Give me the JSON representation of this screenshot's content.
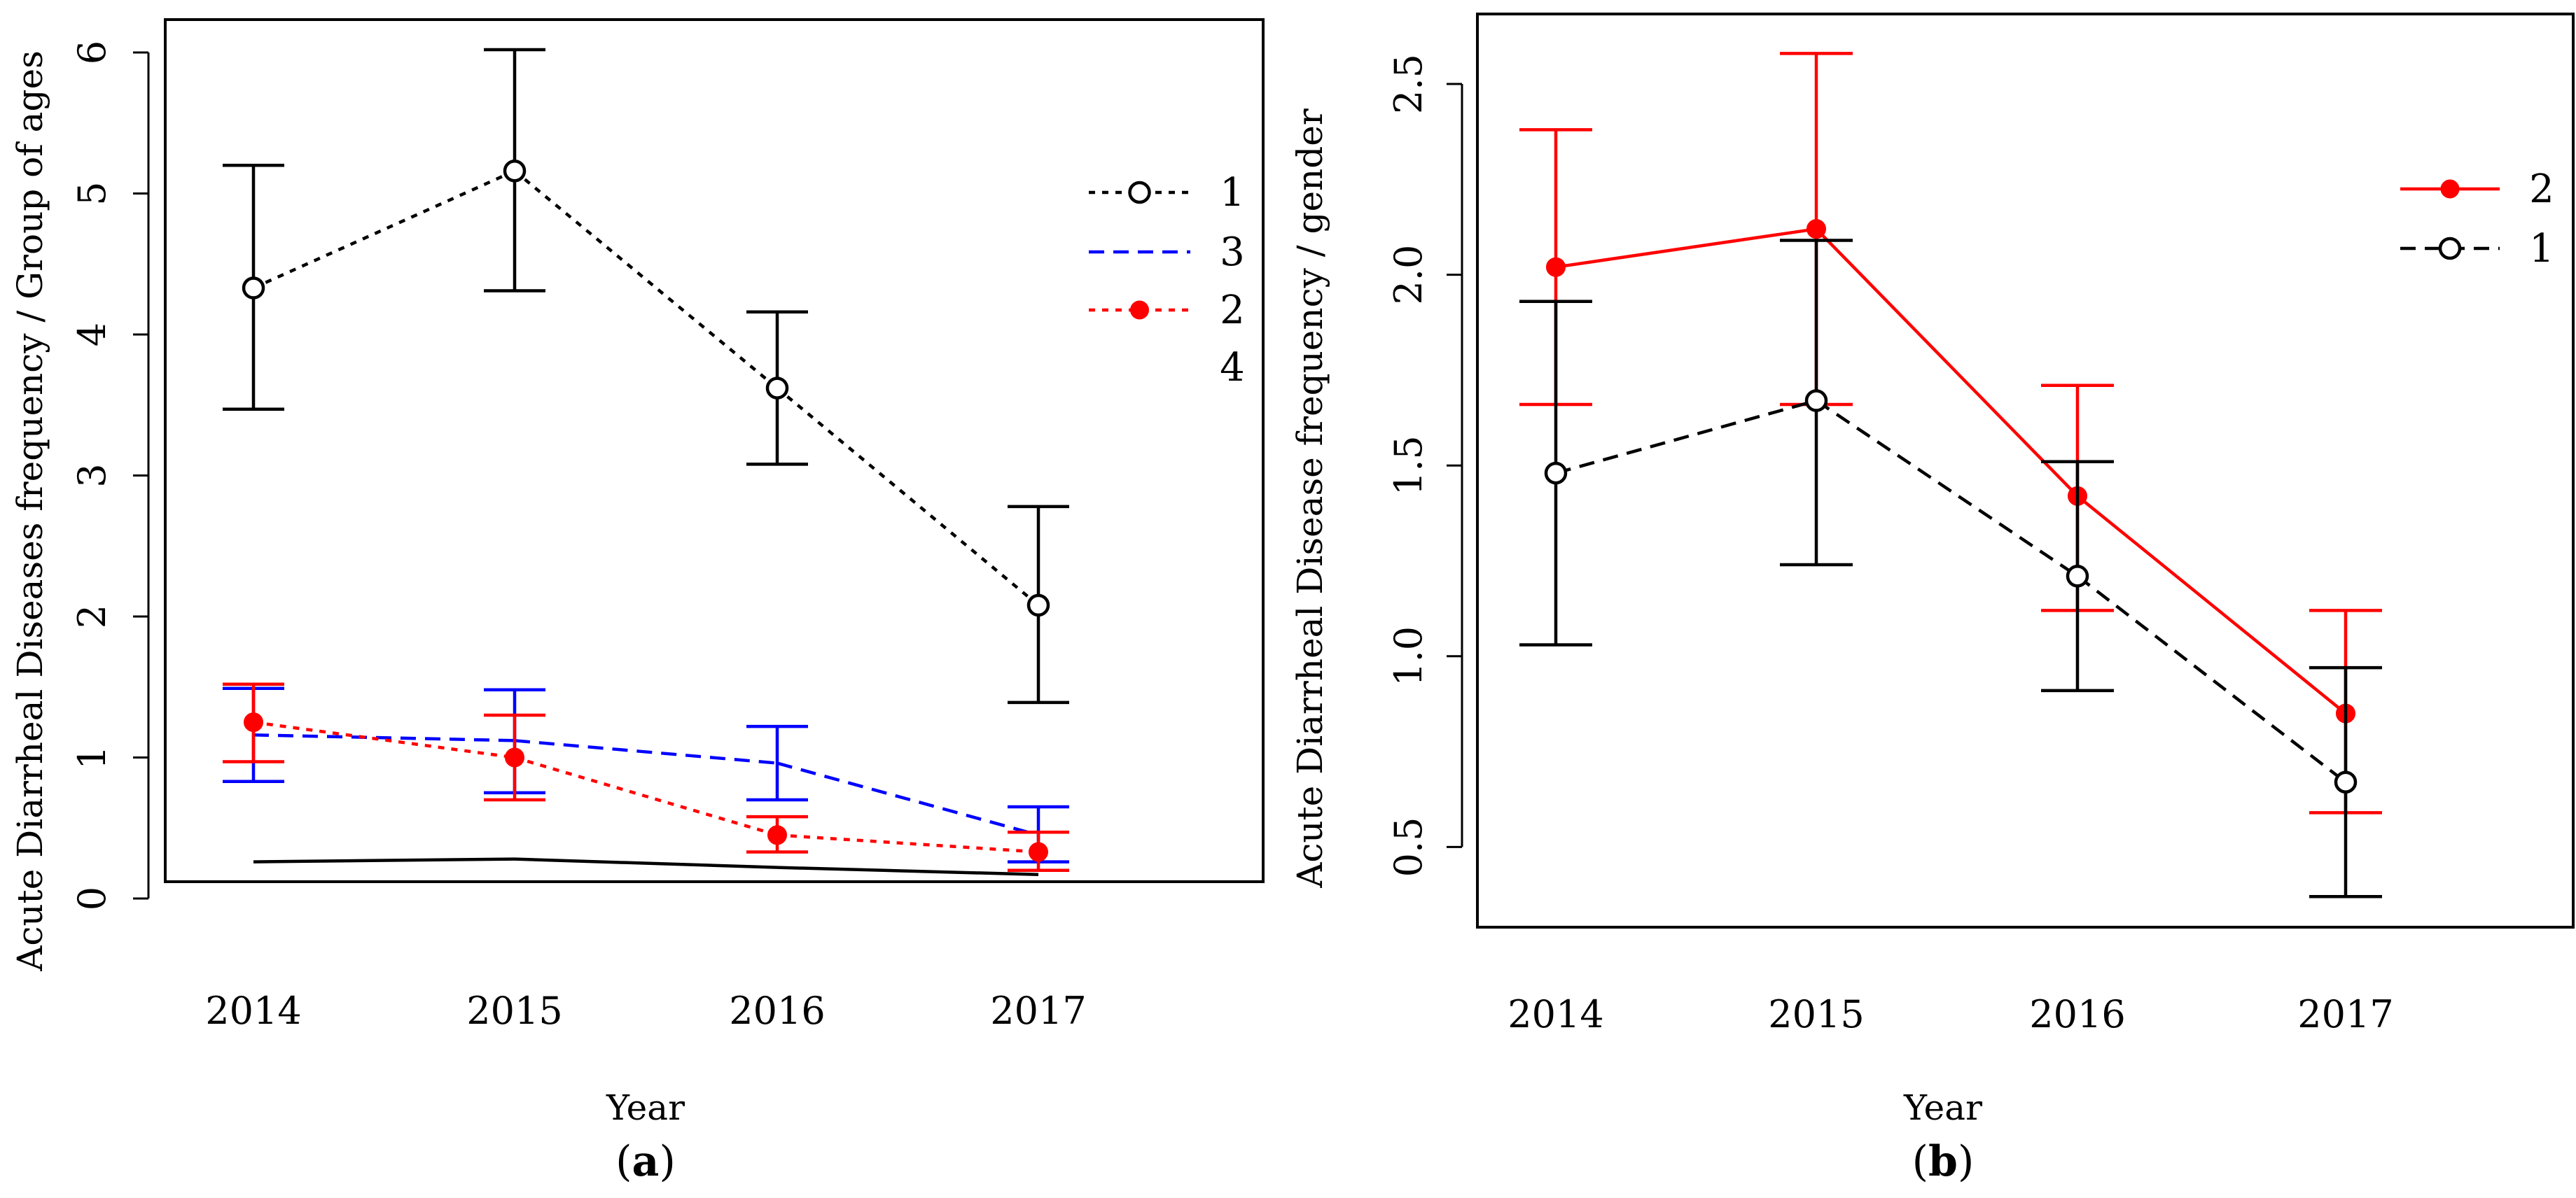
{
  "chart_data": [
    {
      "id": "a",
      "type": "line",
      "panel_label": "a",
      "xlabel": "Year",
      "ylabel": "Acute Diarrheal Diseases frequency / Group of ages",
      "ylim": [
        0,
        6
      ],
      "yticks": [
        0,
        1,
        2,
        3,
        4,
        5,
        6
      ],
      "categories": [
        "2014",
        "2015",
        "2016",
        "2017"
      ],
      "colors": {
        "black": "#000000",
        "red": "#ff0000",
        "blue": "#0000ff"
      },
      "series": [
        {
          "name": "1",
          "color": "#000000",
          "line": "dotted",
          "marker": "open-circle",
          "errorbars": true,
          "values": [
            4.33,
            5.16,
            3.62,
            2.08
          ],
          "lower": [
            3.47,
            4.31,
            3.08,
            1.39
          ],
          "upper": [
            5.2,
            6.02,
            4.16,
            2.78
          ]
        },
        {
          "name": "3",
          "color": "#0000ff",
          "line": "dashed",
          "marker": "none",
          "errorbars": true,
          "values": [
            1.16,
            1.12,
            0.96,
            0.45
          ],
          "lower": [
            0.83,
            0.75,
            0.7,
            0.26
          ],
          "upper": [
            1.49,
            1.48,
            1.22,
            0.65
          ]
        },
        {
          "name": "2",
          "color": "#ff0000",
          "line": "dotted",
          "marker": "filled-circle",
          "errorbars": true,
          "values": [
            1.25,
            1.0,
            0.45,
            0.33
          ],
          "lower": [
            0.97,
            0.7,
            0.33,
            0.2
          ],
          "upper": [
            1.52,
            1.3,
            0.58,
            0.47
          ]
        },
        {
          "name": "4",
          "color": "#000000",
          "line": "solid",
          "marker": "none",
          "errorbars": false,
          "values": [
            0.26,
            0.28,
            0.22,
            0.17
          ]
        }
      ],
      "legend": [
        "1",
        "3",
        "2",
        "4"
      ],
      "legend_position": "top-right"
    },
    {
      "id": "b",
      "type": "line",
      "panel_label": "b",
      "xlabel": "Year",
      "ylabel": "Acute Diarrheal Disease frequency / gender",
      "ylim": [
        0.3,
        2.7
      ],
      "yticks": [
        0.5,
        1.0,
        1.5,
        2.0,
        2.5
      ],
      "ytick_labels": [
        "0.5",
        "1.0",
        "1.5",
        "2.0",
        "2.5"
      ],
      "categories": [
        "2014",
        "2015",
        "2016",
        "2017"
      ],
      "series": [
        {
          "name": "2",
          "color": "#ff0000",
          "line": "solid",
          "marker": "filled-circle",
          "errorbars": true,
          "values": [
            2.02,
            2.12,
            1.42,
            0.85
          ],
          "lower": [
            1.66,
            1.66,
            1.12,
            0.59
          ],
          "upper": [
            2.38,
            2.58,
            1.71,
            1.12
          ]
        },
        {
          "name": "1",
          "color": "#000000",
          "line": "dashed",
          "marker": "open-circle",
          "errorbars": true,
          "values": [
            1.48,
            1.67,
            1.21,
            0.67
          ],
          "lower": [
            1.03,
            1.24,
            0.91,
            0.37
          ],
          "upper": [
            1.93,
            2.09,
            1.51,
            0.97
          ]
        }
      ],
      "legend": [
        "2",
        "1"
      ],
      "legend_position": "top-right"
    }
  ]
}
